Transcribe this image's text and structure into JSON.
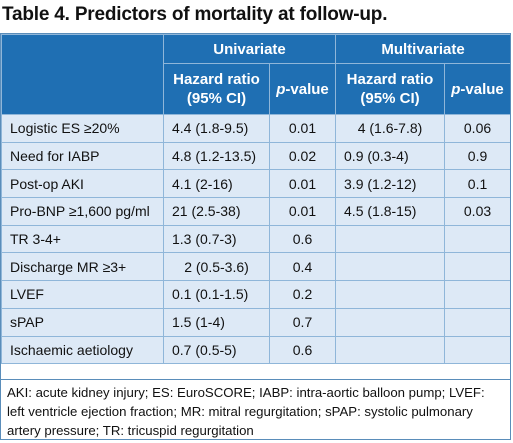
{
  "title": "Table 4. Predictors of mortality at follow-up.",
  "header": {
    "group_univariate": "Univariate",
    "group_multivariate": "Multivariate",
    "hr_line1": "Hazard ratio",
    "hr_line2": "(95% CI)",
    "p_italic": "p",
    "p_rest": "-value"
  },
  "rows": [
    {
      "label": "Logistic ES ≥20%",
      "uni_hr": "4.4 (1.8-9.5)",
      "uni_p": "0.01",
      "multi_hr": "4 (1.6-7.8)",
      "multi_p": "0.06"
    },
    {
      "label": "Need for IABP",
      "uni_hr": "4.8 (1.2-13.5)",
      "uni_p": "0.02",
      "multi_hr": "0.9 (0.3-4)",
      "multi_p": "0.9"
    },
    {
      "label": "Post-op AKI",
      "uni_hr": "4.1 (2-16)",
      "uni_p": "0.01",
      "multi_hr": "3.9 (1.2-12)",
      "multi_p": "0.1"
    },
    {
      "label": "Pro-BNP ≥1,600 pg/ml",
      "uni_hr": "21 (2.5-38)",
      "uni_p": "0.01",
      "multi_hr": "4.5 (1.8-15)",
      "multi_p": "0.03"
    },
    {
      "label": "TR 3-4+",
      "uni_hr": "1.3 (0.7-3)",
      "uni_p": "0.6",
      "multi_hr": "",
      "multi_p": ""
    },
    {
      "label": "Discharge MR ≥3+",
      "uni_hr": "2 (0.5-3.6)",
      "uni_p": "0.4",
      "multi_hr": "",
      "multi_p": ""
    },
    {
      "label": "LVEF",
      "uni_hr": "0.1 (0.1-1.5)",
      "uni_p": "0.2",
      "multi_hr": "",
      "multi_p": ""
    },
    {
      "label": "sPAP",
      "uni_hr": "1.5 (1-4)",
      "uni_p": "0.7",
      "multi_hr": "",
      "multi_p": ""
    },
    {
      "label": "Ischaemic aetiology",
      "uni_hr": "0.7 (0.5-5)",
      "uni_p": "0.6",
      "multi_hr": "",
      "multi_p": ""
    }
  ],
  "footnote": "AKI: acute kidney injury; ES: EuroSCORE; IABP: intra-aortic balloon pump; LVEF: left ventricle ejection fraction; MR: mitral regurgitation; sPAP: systolic pulmonary artery pressure; TR: tricuspid regurgitation"
}
